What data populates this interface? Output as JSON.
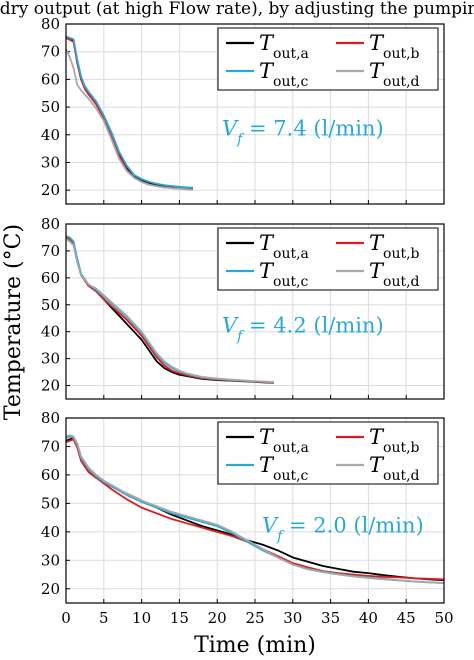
{
  "caption": "y dry output (at high Flow rate), by adjusting the pumping",
  "chart_data": [
    {
      "type": "line",
      "ylabel": "",
      "xlabel": "",
      "ylim": [
        15,
        80
      ],
      "xlim": [
        0,
        50
      ],
      "grid": true,
      "legend_position": "top-right",
      "annotation": "V_f = 7.4 (l/min)",
      "series": [
        {
          "name": "T_out,a",
          "color": "#000000",
          "x": [
            0,
            0.5,
            1,
            1.5,
            2,
            2.5,
            3,
            4,
            5,
            6,
            7,
            8,
            9,
            10,
            11,
            12,
            13,
            14,
            15,
            16,
            16.8
          ],
          "y": [
            75,
            74.5,
            74,
            66,
            60,
            57,
            55,
            51,
            46.5,
            40,
            33,
            28,
            25,
            23.5,
            22.5,
            22,
            21.5,
            21.2,
            21,
            20.8,
            20.7
          ]
        },
        {
          "name": "T_out,b",
          "color": "#e31a1c",
          "x": [
            0,
            0.5,
            1,
            1.5,
            2,
            2.5,
            3,
            4,
            5,
            6,
            7,
            8,
            9,
            10,
            11,
            12,
            13,
            14,
            15,
            16,
            16.8
          ],
          "y": [
            75,
            74.3,
            73.5,
            66,
            60,
            56.5,
            54.5,
            51,
            46,
            39.5,
            32.5,
            27.5,
            24.5,
            23,
            22,
            21.5,
            21,
            20.8,
            20.6,
            20.4,
            20.2
          ]
        },
        {
          "name": "T_out,c",
          "color": "#29a8d8",
          "x": [
            0,
            0.5,
            1,
            1.5,
            2,
            2.5,
            3,
            4,
            5,
            6,
            7,
            8,
            9,
            10,
            11,
            12,
            13,
            14,
            15,
            16,
            16.8
          ],
          "y": [
            75.5,
            75,
            74.5,
            67,
            61,
            57.5,
            55.5,
            52,
            47,
            41,
            34,
            29,
            25.5,
            24,
            23,
            22.3,
            21.8,
            21.5,
            21.2,
            21,
            20.9
          ]
        },
        {
          "name": "T_out,d",
          "color": "#a8a8a8",
          "x": [
            0,
            0.5,
            1,
            1.5,
            2,
            2.5,
            3,
            4,
            5,
            6,
            7,
            8,
            9,
            10,
            11,
            12,
            13,
            14,
            15,
            16,
            16.8
          ],
          "y": [
            71,
            68,
            64,
            58,
            56,
            54.5,
            53,
            49.5,
            45,
            38.5,
            31.5,
            27,
            24.5,
            23,
            22,
            21.4,
            21,
            20.7,
            20.5,
            20.3,
            20.1
          ]
        }
      ]
    },
    {
      "type": "line",
      "ylabel": "Temperature (°C)",
      "xlabel": "",
      "ylim": [
        15,
        80
      ],
      "xlim": [
        0,
        50
      ],
      "grid": true,
      "legend_position": "top-right",
      "annotation": "V_f = 4.2 (l/min)",
      "series": [
        {
          "name": "T_out,a",
          "color": "#000000",
          "x": [
            0,
            0.5,
            1,
            1.5,
            2,
            3,
            4,
            5,
            6,
            7,
            8,
            9,
            10,
            11,
            12,
            13,
            14,
            15,
            16,
            17,
            18,
            20,
            22,
            24,
            26,
            27.5
          ],
          "y": [
            75,
            74.5,
            73,
            66,
            61,
            57,
            55,
            52,
            49,
            46,
            43,
            40,
            37,
            33,
            29,
            26.5,
            25,
            24,
            23.5,
            23,
            22.5,
            22,
            21.8,
            21.5,
            21.2,
            21
          ]
        },
        {
          "name": "T_out,b",
          "color": "#e31a1c",
          "x": [
            0,
            0.5,
            1,
            1.5,
            2,
            3,
            4,
            5,
            6,
            7,
            8,
            9,
            10,
            11,
            12,
            13,
            14,
            15,
            16,
            17,
            18,
            20,
            22,
            24,
            26,
            27.5
          ],
          "y": [
            75,
            74.3,
            72.5,
            66,
            61,
            57,
            55,
            52,
            49.5,
            47,
            44.5,
            41.5,
            38.5,
            34.5,
            30.5,
            27.5,
            25.5,
            24.5,
            23.8,
            23.2,
            22.7,
            22.2,
            21.9,
            21.6,
            21.3,
            21.1
          ]
        },
        {
          "name": "T_out,c",
          "color": "#29a8d8",
          "x": [
            0,
            0.5,
            1,
            1.5,
            2,
            3,
            4,
            5,
            6,
            7,
            8,
            9,
            10,
            11,
            12,
            13,
            14,
            15,
            16,
            17,
            18,
            20,
            22,
            24,
            26,
            27.5
          ],
          "y": [
            75.5,
            75,
            73.5,
            67,
            61.5,
            57.5,
            55.5,
            53,
            50.5,
            48,
            45.5,
            42.5,
            39.5,
            35.5,
            31.5,
            28.5,
            26.5,
            25.2,
            24.3,
            23.6,
            23,
            22.4,
            22,
            21.7,
            21.4,
            21.2
          ]
        },
        {
          "name": "T_out,d",
          "color": "#a8a8a8",
          "x": [
            0,
            0.5,
            1,
            1.5,
            2,
            3,
            4,
            5,
            6,
            7,
            8,
            9,
            10,
            11,
            12,
            13,
            14,
            15,
            16,
            17,
            18,
            20,
            22,
            24,
            26,
            27.5
          ],
          "y": [
            74.5,
            73.5,
            72,
            65.5,
            61,
            57.5,
            56,
            53.5,
            51,
            48.5,
            46,
            43,
            40,
            36,
            32,
            29,
            27,
            25.5,
            24.5,
            23.8,
            23.2,
            22.6,
            22.2,
            21.8,
            21.5,
            21.3
          ]
        }
      ]
    },
    {
      "type": "line",
      "ylabel": "",
      "xlabel": "Time (min)",
      "ylim": [
        15,
        80
      ],
      "xlim": [
        0,
        50
      ],
      "grid": true,
      "legend_position": "top-right",
      "annotation": "V_f = 2.0 (l/min)",
      "series": [
        {
          "name": "T_out,a",
          "color": "#000000",
          "x": [
            0,
            0.5,
            1,
            1.5,
            2,
            3,
            4,
            5,
            6,
            8,
            10,
            12,
            14,
            16,
            18,
            20,
            22,
            24,
            26,
            28,
            30,
            32,
            34,
            36,
            38,
            40,
            42,
            44,
            46,
            48,
            50
          ],
          "y": [
            72,
            72.5,
            73,
            70,
            65,
            61,
            59,
            57.5,
            56,
            53.5,
            51,
            48.5,
            46,
            44,
            42,
            40.5,
            39,
            37,
            35.5,
            33.5,
            31,
            29.5,
            28,
            27,
            26,
            25.5,
            24.8,
            24.2,
            23.7,
            23.3,
            23
          ]
        },
        {
          "name": "T_out,b",
          "color": "#e31a1c",
          "x": [
            0,
            0.5,
            1,
            1.5,
            2,
            3,
            4,
            5,
            6,
            8,
            10,
            12,
            14,
            16,
            18,
            20,
            22,
            24,
            26,
            28,
            30,
            32,
            34,
            36,
            38,
            40,
            42,
            44,
            46,
            48,
            50
          ],
          "y": [
            71.5,
            72,
            72.5,
            69.5,
            65,
            61,
            59,
            57,
            55,
            51.5,
            48.5,
            46.5,
            44.5,
            43,
            41.5,
            40,
            38.5,
            36.5,
            34,
            31.5,
            29,
            27.5,
            26.2,
            25.5,
            25,
            24.5,
            24.2,
            24,
            23.7,
            23.5,
            23.3
          ]
        },
        {
          "name": "T_out,c",
          "color": "#29a8d8",
          "x": [
            0,
            0.5,
            1,
            1.5,
            2,
            3,
            4,
            5,
            6,
            8,
            10,
            12,
            14,
            16,
            18,
            20,
            22,
            24,
            26,
            28,
            30,
            32,
            34,
            36,
            38,
            40,
            42,
            44,
            46,
            48,
            50
          ],
          "y": [
            73,
            73.5,
            73,
            70.5,
            66,
            62,
            59.5,
            57.5,
            56,
            53,
            50.5,
            48.5,
            46.5,
            45,
            43.5,
            42,
            39.5,
            36.5,
            33.5,
            31,
            28.5,
            27,
            26,
            25.2,
            24.5,
            24,
            23.5,
            23,
            22.6,
            22.3,
            22
          ]
        },
        {
          "name": "T_out,d",
          "color": "#a8a8a8",
          "x": [
            0,
            0.5,
            1,
            1.5,
            2,
            3,
            4,
            5,
            6,
            8,
            10,
            12,
            14,
            16,
            18,
            20,
            22,
            24,
            26,
            28,
            30,
            32,
            34,
            36,
            38,
            40,
            42,
            44,
            46,
            48,
            50
          ],
          "y": [
            73.5,
            74,
            73.5,
            71,
            66.5,
            62.5,
            60,
            58,
            56.5,
            53.5,
            51,
            49,
            47,
            45.5,
            44,
            42.5,
            40,
            37,
            34,
            31,
            28.5,
            26.8,
            25.8,
            25,
            24.3,
            23.8,
            23.3,
            22.9,
            22.5,
            22.2,
            22
          ]
        }
      ]
    }
  ],
  "axes": {
    "y_ticks": [
      20,
      30,
      40,
      50,
      60,
      70,
      80
    ],
    "x_ticks": [
      0,
      5,
      10,
      15,
      20,
      25,
      30,
      35,
      40,
      45,
      50
    ]
  },
  "legend_labels": [
    {
      "base": "T",
      "sub": "out,a"
    },
    {
      "base": "T",
      "sub": "out,b"
    },
    {
      "base": "T",
      "sub": "out,c"
    },
    {
      "base": "T",
      "sub": "out,d"
    }
  ],
  "annotations": [
    {
      "var": "V",
      "sub": "f",
      "value": " = 7.4 (l/min)"
    },
    {
      "var": "V",
      "sub": "f",
      "value": " = 4.2 (l/min)"
    },
    {
      "var": "V",
      "sub": "f",
      "value": " = 2.0 (l/min)"
    }
  ]
}
